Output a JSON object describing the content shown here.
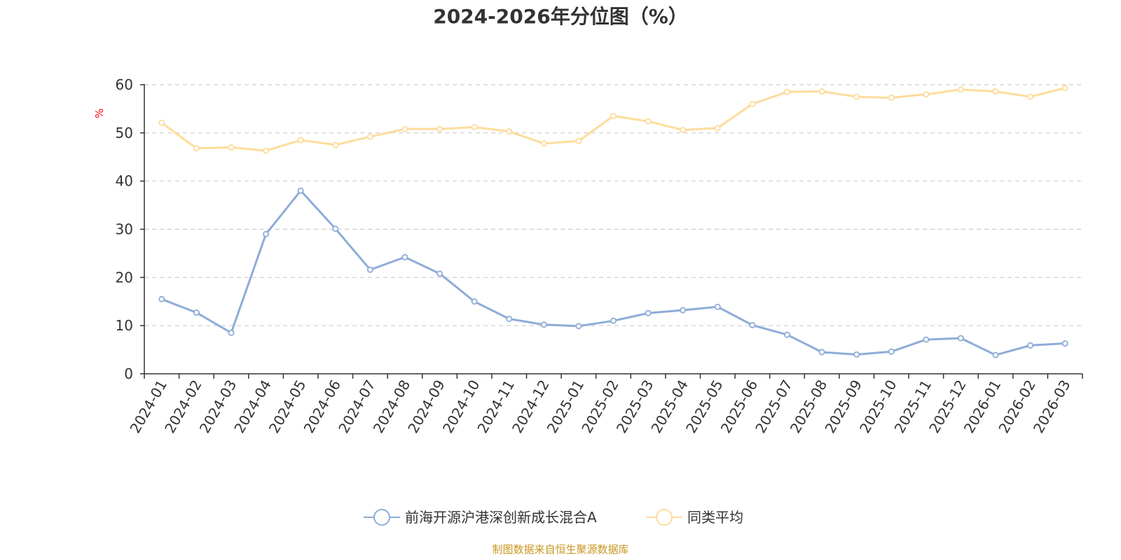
{
  "chart_data": {
    "type": "line",
    "title": "2024-2026年分位图（%）",
    "ylabel": "%",
    "ylim": [
      0,
      60
    ],
    "yticks": [
      0,
      10,
      20,
      30,
      40,
      50,
      60
    ],
    "grid": "horizontal-dashed",
    "legend_position": "bottom-center",
    "categories": [
      "2024-01",
      "2024-02",
      "2024-03",
      "2024-04",
      "2024-05",
      "2024-06",
      "2024-07",
      "2024-08",
      "2024-09",
      "2024-10",
      "2024-11",
      "2024-12",
      "2025-01",
      "2025-02",
      "2025-03",
      "2025-04",
      "2025-05",
      "2025-06",
      "2025-07",
      "2025-08",
      "2025-09",
      "2025-10",
      "2025-11",
      "2025-12",
      "2026-01",
      "2026-02",
      "2026-03"
    ],
    "series": [
      {
        "name": "前海开源沪港深创新成长混合A",
        "color": "#8eacd8",
        "values": [
          15.5,
          12.7,
          8.5,
          29.0,
          38.0,
          30.1,
          21.6,
          24.2,
          20.8,
          15.0,
          11.4,
          10.2,
          9.9,
          11.0,
          12.6,
          13.2,
          13.9,
          10.1,
          8.1,
          4.5,
          4.0,
          4.6,
          7.1,
          7.4,
          3.9,
          5.9,
          6.3
        ]
      },
      {
        "name": "同类平均",
        "color": "#fddc9b",
        "values": [
          52.1,
          46.8,
          47.0,
          46.3,
          48.5,
          47.5,
          49.2,
          50.8,
          50.8,
          51.2,
          50.3,
          47.8,
          48.3,
          53.5,
          52.4,
          50.6,
          51.0,
          56.0,
          58.5,
          58.6,
          57.5,
          57.3,
          58.0,
          59.0,
          58.6,
          57.5,
          59.3
        ]
      }
    ],
    "source": "制图数据来自恒生聚源数据库"
  }
}
